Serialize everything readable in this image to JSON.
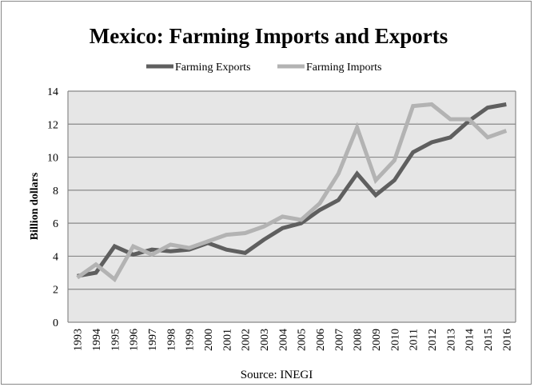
{
  "chart_data": {
    "type": "line",
    "title": "Mexico: Farming Imports and Exports",
    "xlabel": "",
    "ylabel": "Billion dollars",
    "source": "Source: INEGI",
    "ylim": [
      0,
      14
    ],
    "yticks": [
      0,
      2,
      4,
      6,
      8,
      10,
      12,
      14
    ],
    "grid": true,
    "legend_position": "top",
    "x": [
      "1993",
      "1994",
      "1995",
      "1996",
      "1997",
      "1998",
      "1999",
      "2000",
      "2001",
      "2002",
      "2003",
      "2004",
      "2005",
      "2006",
      "2007",
      "2008",
      "2009",
      "2010",
      "2011",
      "2012",
      "2013",
      "2014",
      "2015",
      "2016"
    ],
    "series": [
      {
        "name": "Farming Exports",
        "color": "#5f5f5f",
        "values": [
          2.8,
          3.0,
          4.6,
          4.1,
          4.4,
          4.3,
          4.4,
          4.8,
          4.4,
          4.2,
          5.0,
          5.7,
          6.0,
          6.8,
          7.4,
          9.0,
          7.7,
          8.6,
          10.3,
          10.9,
          11.2,
          12.2,
          13.0,
          13.2
        ]
      },
      {
        "name": "Farming Imports",
        "color": "#b3b3b3",
        "values": [
          2.7,
          3.5,
          2.6,
          4.6,
          4.1,
          4.7,
          4.5,
          4.9,
          5.3,
          5.4,
          5.8,
          6.4,
          6.2,
          7.2,
          9.0,
          11.8,
          8.6,
          9.8,
          13.1,
          13.2,
          12.3,
          12.3,
          11.2,
          11.6
        ]
      }
    ]
  }
}
